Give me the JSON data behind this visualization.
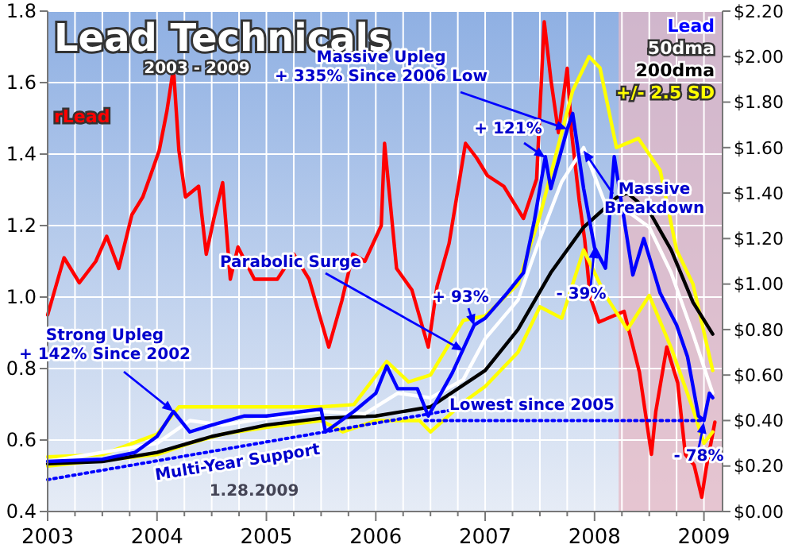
{
  "chart_data": {
    "type": "line",
    "title": "Lead Technicals",
    "subtitle": "2003 - 2009",
    "xlim": [
      2003,
      2009.17
    ],
    "xticks": [
      2003,
      {
        "value": 2003.25,
        "label": null
      },
      {
        "value": 2003.5,
        "label": null
      },
      {
        "value": 2003.75,
        "label": null
      },
      2004,
      {
        "value": 2004.25,
        "label": null
      },
      {
        "value": 2004.5,
        "label": null
      },
      {
        "value": 2004.75,
        "label": null
      },
      2005,
      {
        "value": 2005.25,
        "label": null
      },
      {
        "value": 2005.5,
        "label": null
      },
      {
        "value": 2005.75,
        "label": null
      },
      2006,
      {
        "value": 2006.25,
        "label": null
      },
      {
        "value": 2006.5,
        "label": null
      },
      {
        "value": 2006.75,
        "label": null
      },
      2007,
      {
        "value": 2007.25,
        "label": null
      },
      {
        "value": 2007.5,
        "label": null
      },
      {
        "value": 2007.75,
        "label": null
      },
      2008,
      {
        "value": 2008.25,
        "label": null
      },
      {
        "value": 2008.5,
        "label": null
      },
      {
        "value": 2008.75,
        "label": null
      },
      2009
    ],
    "ylim": [
      0.4,
      1.8
    ],
    "yticks": [
      0.4,
      0.6,
      0.8,
      {
        "value": 1,
        "label": "1.0"
      },
      1.2,
      1.4,
      1.6,
      1.8
    ],
    "y2lim": [
      0,
      2.2
    ],
    "y2ticks": [
      {
        "value": 0,
        "label": "$0.00"
      },
      {
        "value": 0.2,
        "label": "$0.20"
      },
      {
        "value": 0.4,
        "label": "$0.40"
      },
      {
        "value": 0.6,
        "label": "$0.60"
      },
      {
        "value": 0.8,
        "label": "$0.80"
      },
      {
        "value": 1,
        "label": "$1.00"
      },
      {
        "value": 1.2,
        "label": "$1.20"
      },
      {
        "value": 1.4,
        "label": "$1.40"
      },
      {
        "value": 1.6,
        "label": "$1.60"
      },
      {
        "value": 1.8,
        "label": "$1.80"
      },
      {
        "value": 2,
        "label": "$2.00"
      },
      {
        "value": 2.2,
        "label": "$2.20"
      }
    ],
    "grid": true,
    "legend": "top right",
    "bands": [
      {
        "axis": "x",
        "from": 2008.22,
        "to": 2009.17,
        "color": "#e6b8c4"
      }
    ],
    "series": [
      {
        "name": "rLead",
        "color": "#ff0000",
        "axis": "y",
        "x": [
          2003.0,
          2003.15,
          2003.29,
          2003.44,
          2003.54,
          2003.65,
          2003.77,
          2003.87,
          2003.94,
          2004.02,
          2004.09,
          2004.15,
          2004.2,
          2004.26,
          2004.38,
          2004.45,
          2004.52,
          2004.6,
          2004.67,
          2004.74,
          2004.89,
          2005.1,
          2005.25,
          2005.39,
          2005.57,
          2005.69,
          2005.79,
          2005.9,
          2006.05,
          2006.08,
          2006.19,
          2006.33,
          2006.48,
          2006.56,
          2006.67,
          2006.82,
          2006.92,
          2007.02,
          2007.17,
          2007.35,
          2007.47,
          2007.54,
          2007.6,
          2007.67,
          2007.75,
          2007.79,
          2007.86,
          2007.91,
          2007.96,
          2008.04,
          2008.27,
          2008.41,
          2008.52,
          2008.56,
          2008.66,
          2008.76,
          2008.83,
          2008.91,
          2008.98,
          2009.02,
          2009.1
        ],
        "values": [
          0.95,
          1.11,
          1.04,
          1.1,
          1.17,
          1.08,
          1.23,
          1.28,
          1.34,
          1.41,
          1.52,
          1.64,
          1.41,
          1.28,
          1.31,
          1.12,
          1.22,
          1.32,
          1.05,
          1.14,
          1.05,
          1.05,
          1.12,
          1.05,
          0.86,
          0.99,
          1.12,
          1.1,
          1.2,
          1.43,
          1.08,
          1.02,
          0.86,
          1.03,
          1.15,
          1.43,
          1.39,
          1.34,
          1.31,
          1.22,
          1.33,
          1.77,
          1.61,
          1.46,
          1.64,
          1.46,
          1.27,
          1.16,
          1.0,
          0.93,
          0.96,
          0.79,
          0.56,
          0.68,
          0.86,
          0.76,
          0.56,
          0.53,
          0.44,
          0.52,
          0.65
        ]
      },
      {
        "name": "+/- 2.5 SD",
        "color": "#ffff00",
        "axis": "y2",
        "x": [
          2003.0,
          2003.5,
          2004.0,
          2004.2,
          2004.5,
          2005.0,
          2005.5,
          2005.8,
          2006.1,
          2006.3,
          2006.5,
          2006.8,
          2007.0,
          2007.3,
          2007.5,
          2007.8,
          2007.95,
          2008.05,
          2008.2,
          2008.4,
          2008.6,
          2008.75,
          2008.9,
          2009.08
        ],
        "values": [
          0.24,
          0.25,
          0.34,
          0.46,
          0.46,
          0.46,
          0.46,
          0.47,
          0.66,
          0.57,
          0.6,
          0.84,
          0.86,
          1.0,
          1.3,
          1.85,
          2.0,
          1.95,
          1.6,
          1.64,
          1.5,
          1.15,
          1.0,
          0.62
        ]
      },
      {
        "color": "#ffff00",
        "axis": "y2",
        "x": [
          2003.0,
          2004.0,
          2004.3,
          2004.6,
          2005.0,
          2005.5,
          2005.7,
          2006.0,
          2006.4,
          2006.5,
          2006.8,
          2007.0,
          2007.3,
          2007.5,
          2007.7,
          2007.9,
          2008.1,
          2008.3,
          2008.5,
          2008.7,
          2008.9,
          2009.0,
          2009.08
        ],
        "values": [
          0.2,
          0.25,
          0.3,
          0.34,
          0.37,
          0.4,
          0.35,
          0.4,
          0.4,
          0.35,
          0.48,
          0.55,
          0.7,
          0.9,
          0.85,
          1.15,
          0.95,
          0.8,
          0.95,
          0.72,
          0.45,
          0.3,
          0.35
        ]
      },
      {
        "name": "200dma",
        "color": "#000000",
        "axis": "y2",
        "x": [
          2003.0,
          2003.5,
          2004.0,
          2004.5,
          2005.0,
          2005.5,
          2006.0,
          2006.5,
          2007.0,
          2007.3,
          2007.6,
          2007.9,
          2008.2,
          2008.3,
          2008.5,
          2008.7,
          2008.9,
          2009.08
        ],
        "values": [
          0.21,
          0.22,
          0.26,
          0.33,
          0.38,
          0.41,
          0.42,
          0.46,
          0.62,
          0.8,
          1.05,
          1.25,
          1.38,
          1.4,
          1.32,
          1.15,
          0.92,
          0.78
        ]
      },
      {
        "name": "50dma",
        "color": "#ffffff",
        "axis": "y2",
        "x": [
          2003.0,
          2004.0,
          2004.3,
          2004.6,
          2005.0,
          2005.5,
          2005.9,
          2006.2,
          2006.5,
          2006.8,
          2007.0,
          2007.3,
          2007.5,
          2007.7,
          2007.9,
          2008.1,
          2008.3,
          2008.5,
          2008.7,
          2008.9,
          2009.08
        ],
        "values": [
          0.22,
          0.3,
          0.4,
          0.38,
          0.41,
          0.44,
          0.43,
          0.52,
          0.5,
          0.58,
          0.76,
          0.93,
          1.2,
          1.45,
          1.6,
          1.35,
          1.32,
          1.25,
          1.05,
          0.78,
          0.52
        ]
      },
      {
        "name": "Lead",
        "color": "#0000ff",
        "axis": "y2",
        "x": [
          2003.0,
          2003.5,
          2003.8,
          2004.0,
          2004.15,
          2004.3,
          2004.5,
          2004.8,
          2005.0,
          2005.5,
          2005.54,
          2005.8,
          2006.0,
          2006.1,
          2006.2,
          2006.38,
          2006.48,
          2006.7,
          2006.9,
          2007.0,
          2007.2,
          2007.35,
          2007.45,
          2007.55,
          2007.6,
          2007.75,
          2007.8,
          2007.9,
          2008.0,
          2008.1,
          2008.18,
          2008.35,
          2008.45,
          2008.6,
          2008.75,
          2008.85,
          2008.95,
          2009.0,
          2009.05,
          2009.08
        ],
        "values": [
          0.22,
          0.23,
          0.26,
          0.33,
          0.44,
          0.35,
          0.38,
          0.42,
          0.42,
          0.45,
          0.35,
          0.44,
          0.52,
          0.64,
          0.54,
          0.54,
          0.42,
          0.61,
          0.82,
          0.85,
          0.96,
          1.05,
          1.28,
          1.56,
          1.42,
          1.68,
          1.75,
          1.42,
          1.16,
          1.07,
          1.56,
          1.04,
          1.2,
          0.96,
          0.82,
          0.68,
          0.42,
          0.4,
          0.52,
          0.5
        ]
      },
      {
        "color": "#0000ff",
        "axis": "y2",
        "line_style": "dotted",
        "x": [
          2003.0,
          2007.1
        ],
        "values": [
          0.14,
          0.48
        ]
      },
      {
        "color": "#0000ff",
        "axis": "y2",
        "line_style": "dotted",
        "x": [
          2006.45,
          2009.0
        ],
        "values": [
          0.4,
          0.4
        ]
      }
    ],
    "annotations": [
      {
        "text": "Strong Upleg\n+ 142% Since 2002",
        "x": 2004.15,
        "y": 0.68
      },
      "Multi-Year Support",
      {
        "text": "Parabolic Surge",
        "x": 2006.8,
        "y": 0.85
      },
      {
        "text": "Massive Upleg\n+ 335% Since 2006 Low",
        "x": 2007.75,
        "y": 1.47
      },
      {
        "text": "+ 121%",
        "x": 2007.55,
        "y": 1.39
      },
      {
        "text": "+ 93%",
        "x": 2006.9,
        "y": 0.92
      },
      {
        "text": "- 39%",
        "x": 2008.0,
        "y": 1.14
      },
      {
        "text": "Massive\nBreakdown",
        "x": 2007.9,
        "y": 1.41
      },
      "Lowest since 2005",
      {
        "text": "- 78%",
        "x": 2009.0,
        "y": 0.65
      },
      "1.28.2009"
    ]
  }
}
